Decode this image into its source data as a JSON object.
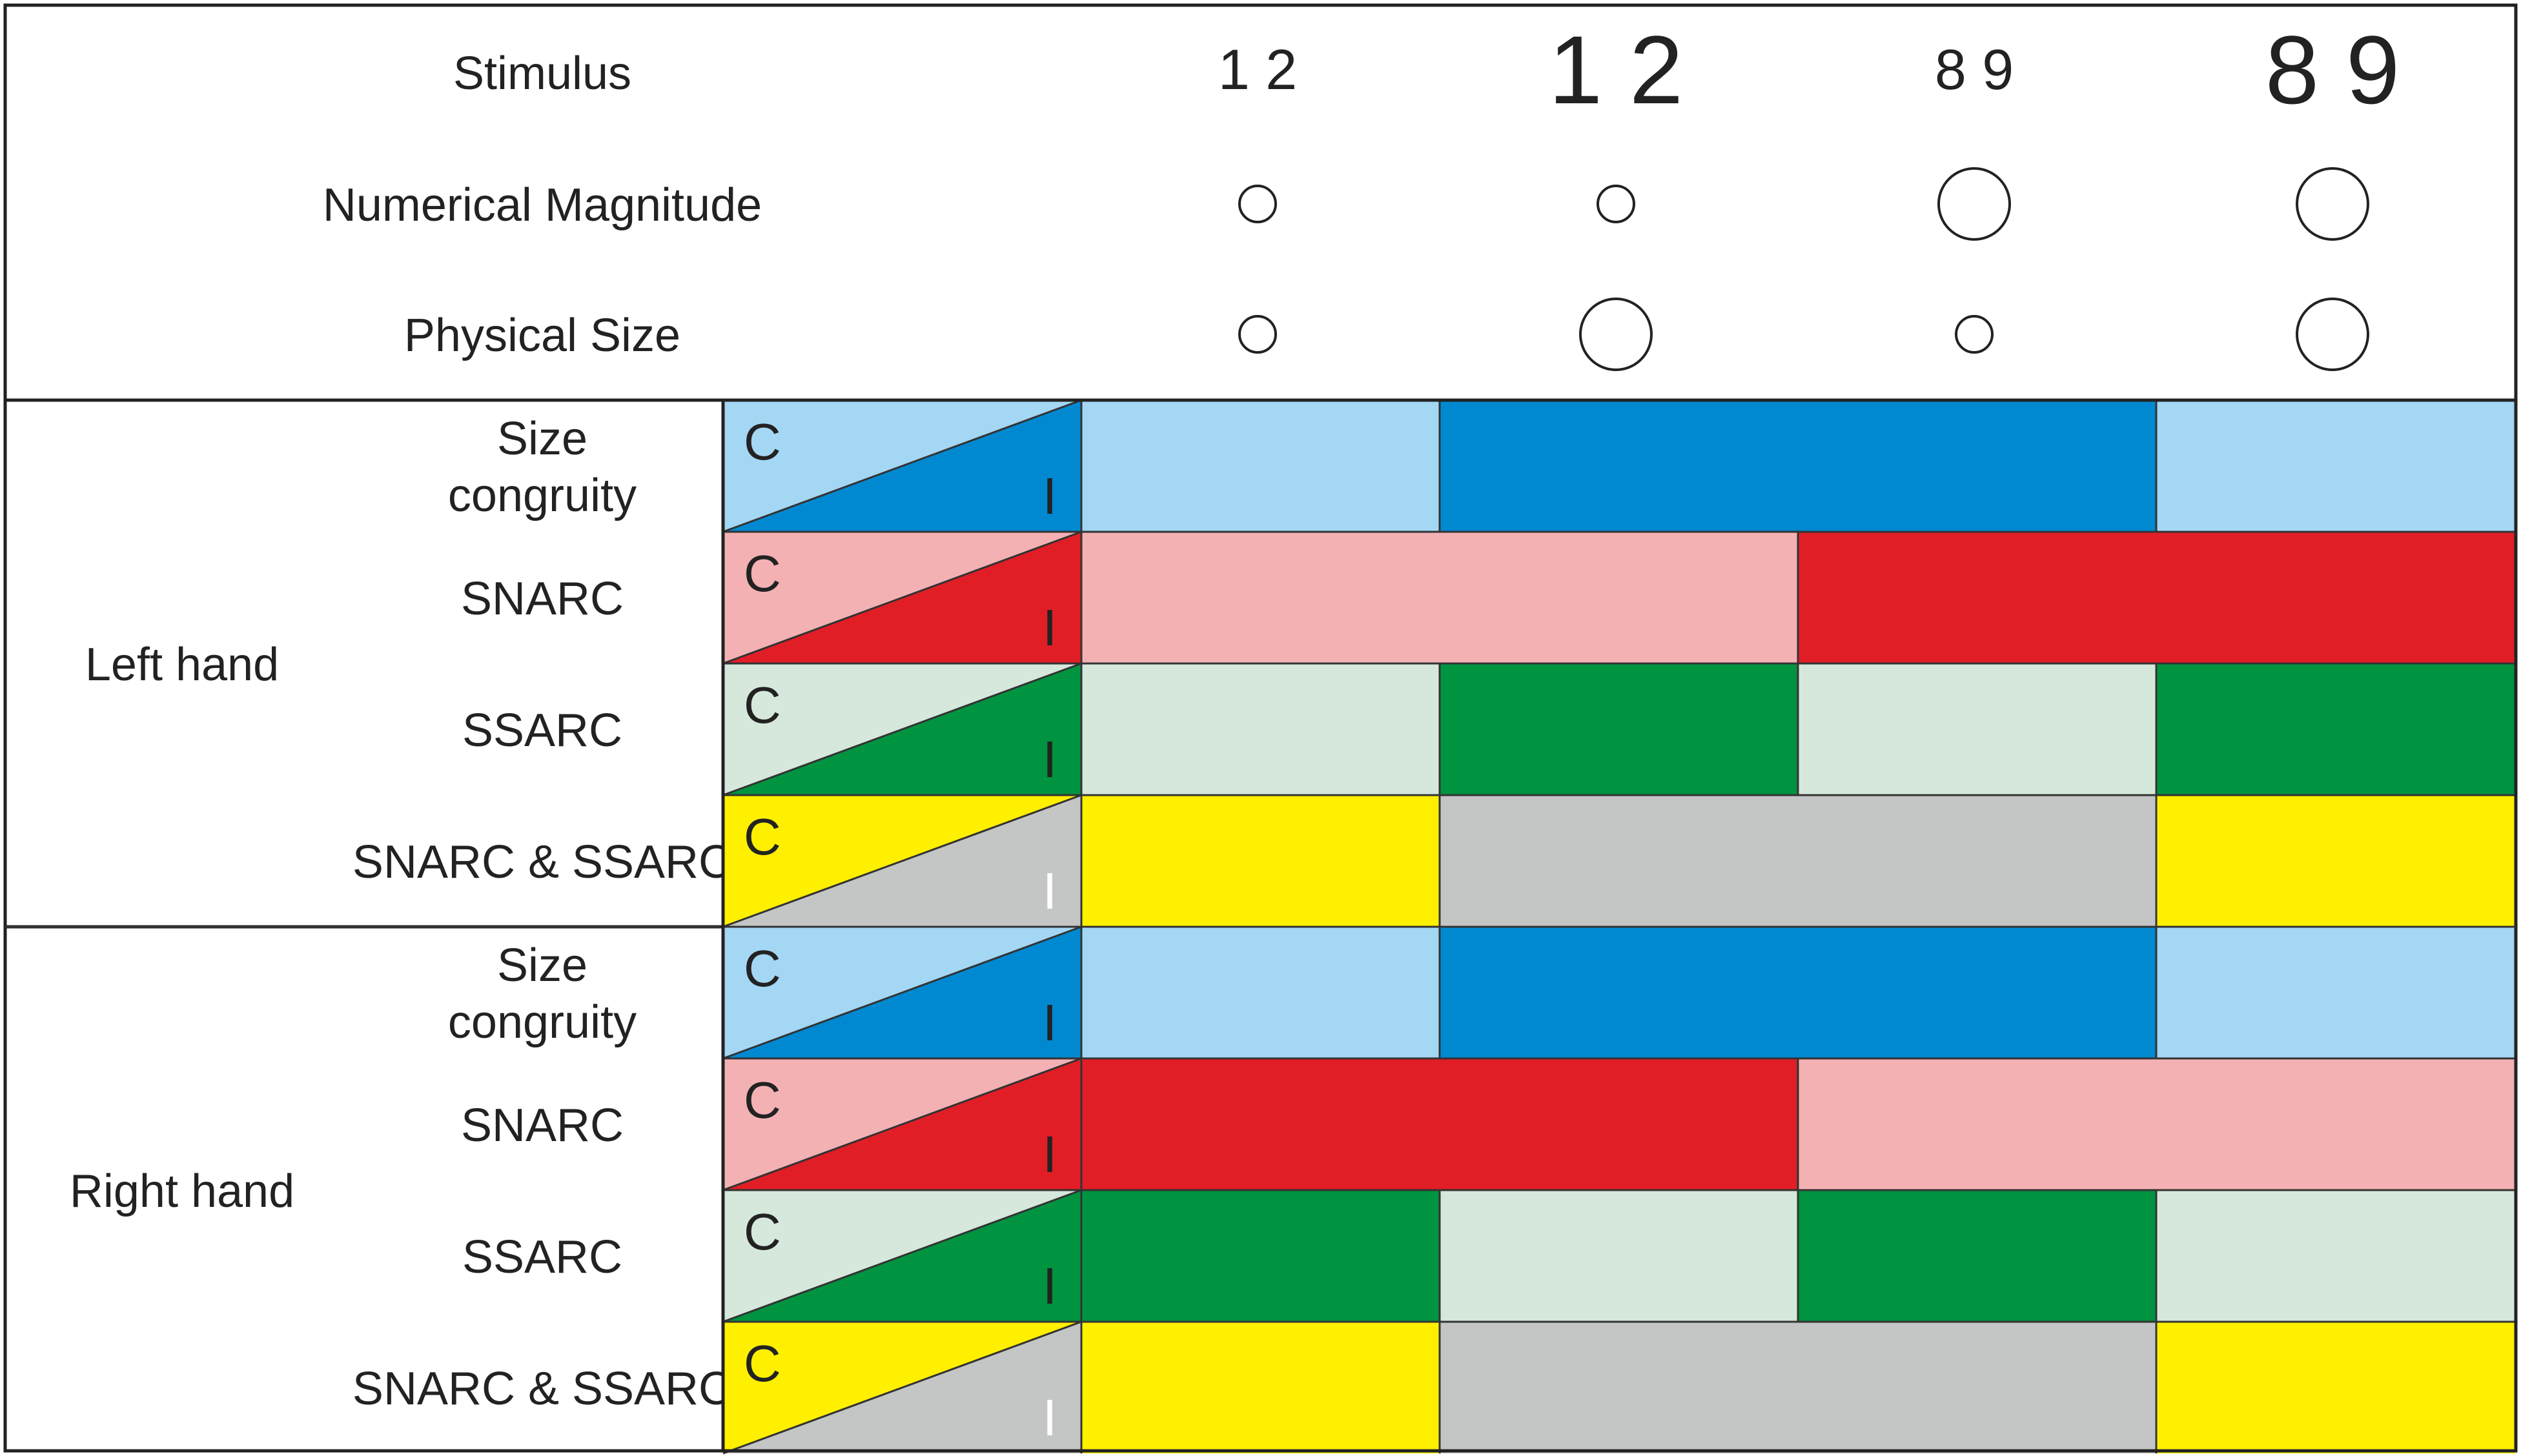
{
  "header": {
    "rows": [
      {
        "label": "Stimulus"
      },
      {
        "label": "Numerical Magnitude"
      },
      {
        "label": "Physical Size"
      }
    ],
    "stimuli": [
      {
        "text": "1 2",
        "numerical": "small",
        "physical": "small"
      },
      {
        "text": "1 2",
        "numerical": "small",
        "physical": "large"
      },
      {
        "text": "8 9",
        "numerical": "large",
        "physical": "small"
      },
      {
        "text": "8 9",
        "numerical": "large",
        "physical": "large"
      }
    ]
  },
  "legend": {
    "congruent": "C",
    "incongruent": "I"
  },
  "effects": [
    {
      "key": "size",
      "label": "Size\ncongruity",
      "light": "#a3d7f4",
      "dark": "#0089d1"
    },
    {
      "key": "snarc",
      "label": "SNARC",
      "light": "#f3b1b4",
      "dark": "#e11e26"
    },
    {
      "key": "ssarc",
      "label": "SSARC",
      "light": "#d5e8db",
      "dark": "#009440"
    },
    {
      "key": "both",
      "label": "SNARC & SSARC",
      "light": "#fff000",
      "dark": "#c4c5c5"
    }
  ],
  "hands": [
    {
      "label": "Left hand",
      "rows": [
        [
          "C",
          "I",
          "I",
          "C"
        ],
        [
          "C",
          "C",
          "I",
          "I"
        ],
        [
          "C",
          "I",
          "C",
          "I"
        ],
        [
          "C",
          "I",
          "I",
          "C"
        ]
      ]
    },
    {
      "label": "Right hand",
      "rows": [
        [
          "C",
          "I",
          "I",
          "C"
        ],
        [
          "I",
          "I",
          "C",
          "C"
        ],
        [
          "I",
          "C",
          "I",
          "C"
        ],
        [
          "C",
          "I",
          "I",
          "C"
        ]
      ]
    }
  ]
}
